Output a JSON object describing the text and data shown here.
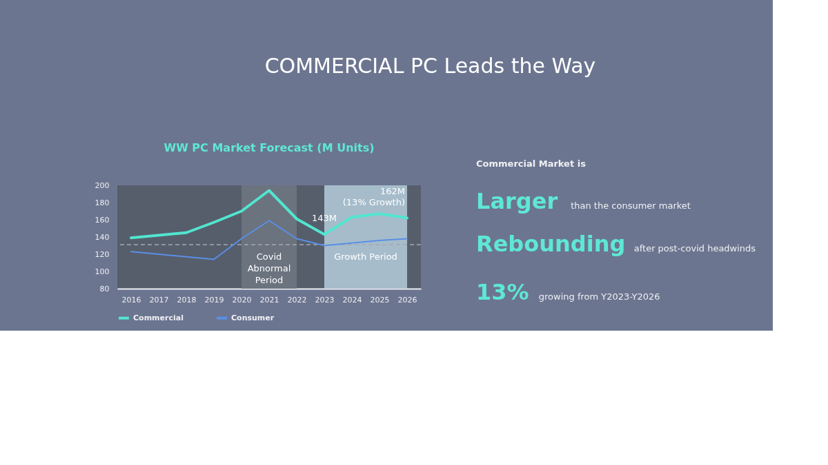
{
  "chart_data": {
    "type": "line",
    "title": "COMMERCIAL PC Leads the Way",
    "subtitle": "WW PC Market Forecast (M Units)",
    "x": [
      2016,
      2017,
      2018,
      2019,
      2020,
      2021,
      2022,
      2023,
      2024,
      2025,
      2026
    ],
    "series": [
      {
        "name": "Commercial",
        "color": "#52e5cf",
        "values": [
          139,
          142,
          145,
          157,
          170,
          194,
          161,
          143,
          163,
          167,
          162
        ]
      },
      {
        "name": "Consumer",
        "color": "#5a8fe6",
        "values": [
          123,
          120,
          117,
          114,
          138,
          159,
          138,
          130,
          133,
          136,
          138
        ]
      }
    ],
    "xlim": [
      2015.5,
      2026.5
    ],
    "xticks": [
      2016,
      2017,
      2018,
      2019,
      2020,
      2021,
      2022,
      2023,
      2024,
      2025,
      2026
    ],
    "ylim": [
      80,
      200
    ],
    "yticks": [
      80,
      100,
      120,
      140,
      160,
      180,
      200
    ],
    "ref_lines": [
      {
        "axis": "y",
        "value": 131,
        "color": "#a3a8b0",
        "line_style": "dashed"
      }
    ],
    "bands": [
      {
        "axis": "x",
        "from": 2020,
        "to": 2022,
        "label": "Covid\nAbnormal\nPeriod",
        "color": "#6b737f"
      },
      {
        "axis": "x",
        "from": 2023,
        "to": 2026,
        "label": "Growth Period",
        "color": "#a6bccb"
      }
    ],
    "legend": "bottom",
    "annotations": [
      {
        "text": "143M",
        "x": 2023,
        "y": 143
      },
      {
        "text": "162M\n(13% Growth)",
        "x": 2026,
        "y": 162
      },
      "Commercial Market is",
      "Larger",
      "than the consumer market",
      "Rebounding",
      "after post-covid headwinds",
      "13%",
      "growing from Y2023-Y2026"
    ]
  }
}
